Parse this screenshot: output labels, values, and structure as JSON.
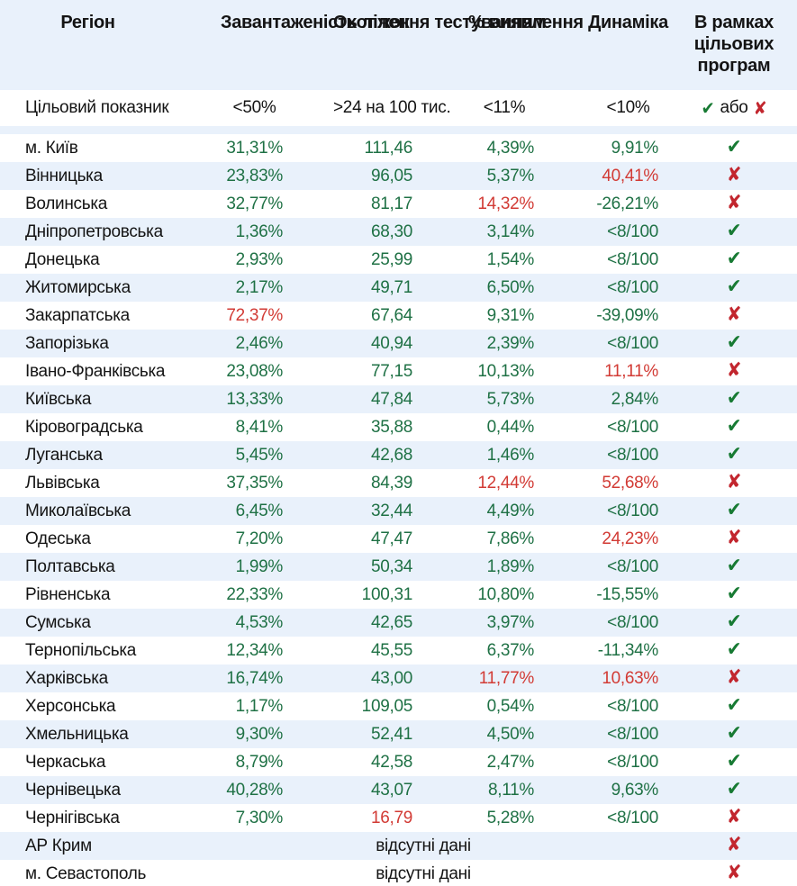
{
  "colors": {
    "background": "#e9f1fb",
    "row_white": "#ffffff",
    "text": "#141414",
    "value_green": "#1f7145",
    "value_red": "#d23b35",
    "check_green": "#177a33",
    "cross_red": "#c2262e"
  },
  "icons": {
    "check": "✔",
    "cross": "✘"
  },
  "header": {
    "columns": [
      {
        "label": "Регіон"
      },
      {
        "label": "Завантаженість\nліжок"
      },
      {
        "label": "Охоплення\nтестуванням"
      },
      {
        "label": "%\nвиявлення"
      },
      {
        "label": "Динаміка"
      },
      {
        "label": "В рамках\nцільових\nпрограм"
      }
    ]
  },
  "target_row": {
    "label": "Цільовий показник",
    "beds": "<50%",
    "testing": ">24 на 100 тис.",
    "detection": "<11%",
    "dynamics": "<10%",
    "or_label": "або"
  },
  "chart_data": {
    "type": "table",
    "title": "",
    "columns": [
      "Регіон",
      "Завантаженість ліжок",
      "Охоплення тестуванням",
      "% виявлення",
      "Динаміка",
      "В рамках цільових програм"
    ],
    "rows": [
      {
        "region": "м. Київ",
        "beds": "31,31%",
        "testing": "111,46",
        "detection": "4,39%",
        "dynamics": "9,91%",
        "status": "pass",
        "red": []
      },
      {
        "region": "Вінницька",
        "beds": "23,83%",
        "testing": "96,05",
        "detection": "5,37%",
        "dynamics": "40,41%",
        "status": "fail",
        "red": [
          "dynamics"
        ]
      },
      {
        "region": "Волинська",
        "beds": "32,77%",
        "testing": "81,17",
        "detection": "14,32%",
        "dynamics": "-26,21%",
        "status": "fail",
        "red": [
          "detection"
        ]
      },
      {
        "region": "Дніпропетровська",
        "beds": "1,36%",
        "testing": "68,30",
        "detection": "3,14%",
        "dynamics": "<8/100",
        "status": "pass",
        "red": []
      },
      {
        "region": "Донецька",
        "beds": "2,93%",
        "testing": "25,99",
        "detection": "1,54%",
        "dynamics": "<8/100",
        "status": "pass",
        "red": []
      },
      {
        "region": "Житомирська",
        "beds": "2,17%",
        "testing": "49,71",
        "detection": "6,50%",
        "dynamics": "<8/100",
        "status": "pass",
        "red": []
      },
      {
        "region": "Закарпатська",
        "beds": "72,37%",
        "testing": "67,64",
        "detection": "9,31%",
        "dynamics": "-39,09%",
        "status": "fail",
        "red": [
          "beds"
        ]
      },
      {
        "region": "Запорізька",
        "beds": "2,46%",
        "testing": "40,94",
        "detection": "2,39%",
        "dynamics": "<8/100",
        "status": "pass",
        "red": []
      },
      {
        "region": "Івано-Франківська",
        "beds": "23,08%",
        "testing": "77,15",
        "detection": "10,13%",
        "dynamics": "11,11%",
        "status": "fail",
        "red": [
          "dynamics"
        ]
      },
      {
        "region": "Київська",
        "beds": "13,33%",
        "testing": "47,84",
        "detection": "5,73%",
        "dynamics": "2,84%",
        "status": "pass",
        "red": []
      },
      {
        "region": "Кіровоградська",
        "beds": "8,41%",
        "testing": "35,88",
        "detection": "0,44%",
        "dynamics": "<8/100",
        "status": "pass",
        "red": []
      },
      {
        "region": "Луганська",
        "beds": "5,45%",
        "testing": "42,68",
        "detection": "1,46%",
        "dynamics": "<8/100",
        "status": "pass",
        "red": []
      },
      {
        "region": "Львівська",
        "beds": "37,35%",
        "testing": "84,39",
        "detection": "12,44%",
        "dynamics": "52,68%",
        "status": "fail",
        "red": [
          "detection",
          "dynamics"
        ]
      },
      {
        "region": "Миколаївська",
        "beds": "6,45%",
        "testing": "32,44",
        "detection": "4,49%",
        "dynamics": "<8/100",
        "status": "pass",
        "red": []
      },
      {
        "region": "Одеська",
        "beds": "7,20%",
        "testing": "47,47",
        "detection": "7,86%",
        "dynamics": "24,23%",
        "status": "fail",
        "red": [
          "dynamics"
        ]
      },
      {
        "region": "Полтавська",
        "beds": "1,99%",
        "testing": "50,34",
        "detection": "1,89%",
        "dynamics": "<8/100",
        "status": "pass",
        "red": []
      },
      {
        "region": "Рівненська",
        "beds": "22,33%",
        "testing": "100,31",
        "detection": "10,80%",
        "dynamics": "-15,55%",
        "status": "pass",
        "red": []
      },
      {
        "region": "Сумська",
        "beds": "4,53%",
        "testing": "42,65",
        "detection": "3,97%",
        "dynamics": "<8/100",
        "status": "pass",
        "red": []
      },
      {
        "region": "Тернопільська",
        "beds": "12,34%",
        "testing": "45,55",
        "detection": "6,37%",
        "dynamics": "-11,34%",
        "status": "pass",
        "red": []
      },
      {
        "region": "Харківська",
        "beds": "16,74%",
        "testing": "43,00",
        "detection": "11,77%",
        "dynamics": "10,63%",
        "status": "fail",
        "red": [
          "detection",
          "dynamics"
        ]
      },
      {
        "region": "Херсонська",
        "beds": "1,17%",
        "testing": "109,05",
        "detection": "0,54%",
        "dynamics": "<8/100",
        "status": "pass",
        "red": []
      },
      {
        "region": "Хмельницька",
        "beds": "9,30%",
        "testing": "52,41",
        "detection": "4,50%",
        "dynamics": "<8/100",
        "status": "pass",
        "red": []
      },
      {
        "region": "Черкаська",
        "beds": "8,79%",
        "testing": "42,58",
        "detection": "2,47%",
        "dynamics": "<8/100",
        "status": "pass",
        "red": []
      },
      {
        "region": "Чернівецька",
        "beds": "40,28%",
        "testing": "43,07",
        "detection": "8,11%",
        "dynamics": "9,63%",
        "status": "pass",
        "red": []
      },
      {
        "region": "Чернігівська",
        "beds": "7,30%",
        "testing": "16,79",
        "detection": "5,28%",
        "dynamics": "<8/100",
        "status": "fail",
        "red": [
          "testing"
        ]
      },
      {
        "region": "АР Крим",
        "no_data": "відсутні дані",
        "status": "fail"
      },
      {
        "region": "м. Севастополь",
        "no_data": "відсутні дані",
        "status": "fail"
      }
    ]
  }
}
